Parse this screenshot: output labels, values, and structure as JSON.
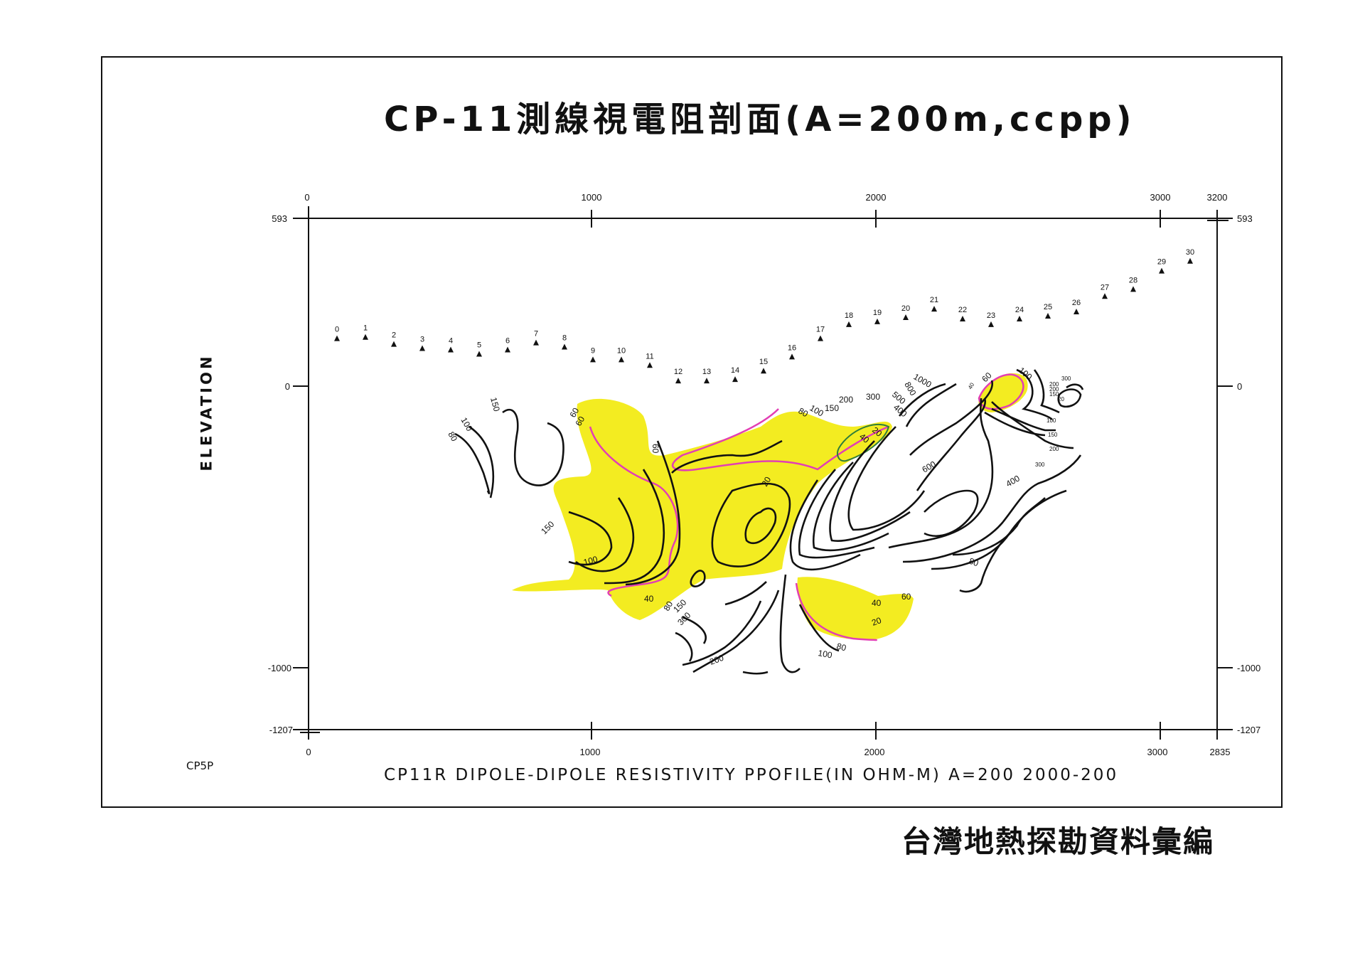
{
  "title": "CP-11測線視電阻剖面(A=200m,ccpp)",
  "ylabel": "ELEVATION",
  "left_code": "CP5P",
  "subtitle": "CP11R DIPOLE-DIPOLE  RESISTIVITY   PPOFILE(IN  OHM-M)  A=200  2000-200",
  "publisher": "台灣地熱探勘資料彙編",
  "colors": {
    "low_resistivity_fill": "#f3ec21",
    "boundary_line": "#e23fb4",
    "inner_line": "#2f7d3a",
    "ink": "#111111"
  },
  "axes": {
    "top_ticks": [
      "0",
      "1000",
      "2000",
      "3000",
      "3200"
    ],
    "bottom_ticks": [
      "0",
      "1000",
      "2000",
      "3000",
      "2835"
    ],
    "left_ticks": [
      "593",
      "0",
      "-1000",
      "-1207"
    ],
    "right_ticks": [
      "593",
      "0",
      "-1000",
      "-1207"
    ]
  },
  "stations": [
    {
      "label": "0",
      "elev": 170
    },
    {
      "label": "1",
      "elev": 175
    },
    {
      "label": "2",
      "elev": 150
    },
    {
      "label": "3",
      "elev": 135
    },
    {
      "label": "4",
      "elev": 130
    },
    {
      "label": "5",
      "elev": 115
    },
    {
      "label": "6",
      "elev": 130
    },
    {
      "label": "7",
      "elev": 155
    },
    {
      "label": "8",
      "elev": 140
    },
    {
      "label": "9",
      "elev": 95
    },
    {
      "label": "10",
      "elev": 95
    },
    {
      "label": "11",
      "elev": 75
    },
    {
      "label": "12",
      "elev": 20
    },
    {
      "label": "13",
      "elev": 20
    },
    {
      "label": "14",
      "elev": 25
    },
    {
      "label": "15",
      "elev": 55
    },
    {
      "label": "16",
      "elev": 105
    },
    {
      "label": "17",
      "elev": 170
    },
    {
      "label": "18",
      "elev": 220
    },
    {
      "label": "19",
      "elev": 230
    },
    {
      "label": "20",
      "elev": 245
    },
    {
      "label": "21",
      "elev": 275
    },
    {
      "label": "22",
      "elev": 240
    },
    {
      "label": "23",
      "elev": 220
    },
    {
      "label": "24",
      "elev": 240
    },
    {
      "label": "25",
      "elev": 250
    },
    {
      "label": "26",
      "elev": 265
    },
    {
      "label": "27",
      "elev": 320
    },
    {
      "label": "28",
      "elev": 345
    },
    {
      "label": "29",
      "elev": 410
    },
    {
      "label": "30",
      "elev": 445
    }
  ],
  "contour_labels": [
    "80",
    "100",
    "150",
    "60",
    "60",
    "60",
    "150",
    "100",
    "40",
    "80",
    "150",
    "300",
    "20",
    "80",
    "100",
    "150",
    "200",
    "300",
    "500",
    "400",
    "800",
    "1000",
    "20",
    "40",
    "600",
    "400",
    "80",
    "60",
    "40",
    "20",
    "80",
    "100",
    "200",
    "60",
    "100",
    "200",
    "300",
    "100",
    "150",
    "200",
    "300",
    "40",
    "200",
    "150",
    "20"
  ]
}
